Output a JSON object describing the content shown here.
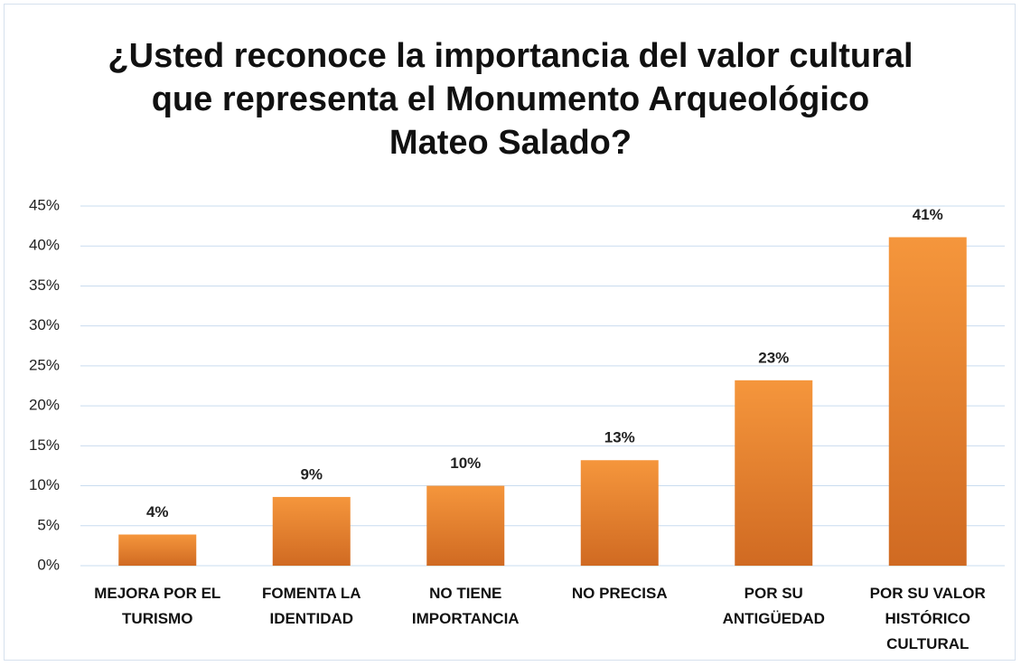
{
  "chart_data": {
    "type": "bar",
    "title": "¿Usted reconoce la importancia del valor cultural que representa el Monumento Arqueológico Mateo Salado?",
    "categories": [
      "MEJORA POR EL TURISMO",
      "FOMENTA LA IDENTIDAD",
      "NO TIENE IMPORTANCIA",
      "NO PRECISA",
      "POR SU ANTIGÜEDAD",
      "POR SU VALOR HISTÓRICO CULTURAL"
    ],
    "values": [
      3.9,
      8.6,
      10,
      13.2,
      23.2,
      41.1
    ],
    "value_labels": [
      "4%",
      "9%",
      "10%",
      "13%",
      "23%",
      "41%"
    ],
    "color": "#f5963c",
    "ylim": [
      0,
      45
    ],
    "yticks": [
      {
        "value": 0,
        "label": "0%"
      },
      {
        "value": 5,
        "label": "5%"
      },
      {
        "value": 10,
        "label": "10%"
      },
      {
        "value": 15,
        "label": "15%"
      },
      {
        "value": 20,
        "label": "20%"
      },
      {
        "value": 25,
        "label": "25%"
      },
      {
        "value": 30,
        "label": "30%"
      },
      {
        "value": 35,
        "label": "35%"
      },
      {
        "value": 40,
        "label": "40%"
      },
      {
        "value": 45,
        "label": "45%"
      }
    ],
    "grid": true
  }
}
